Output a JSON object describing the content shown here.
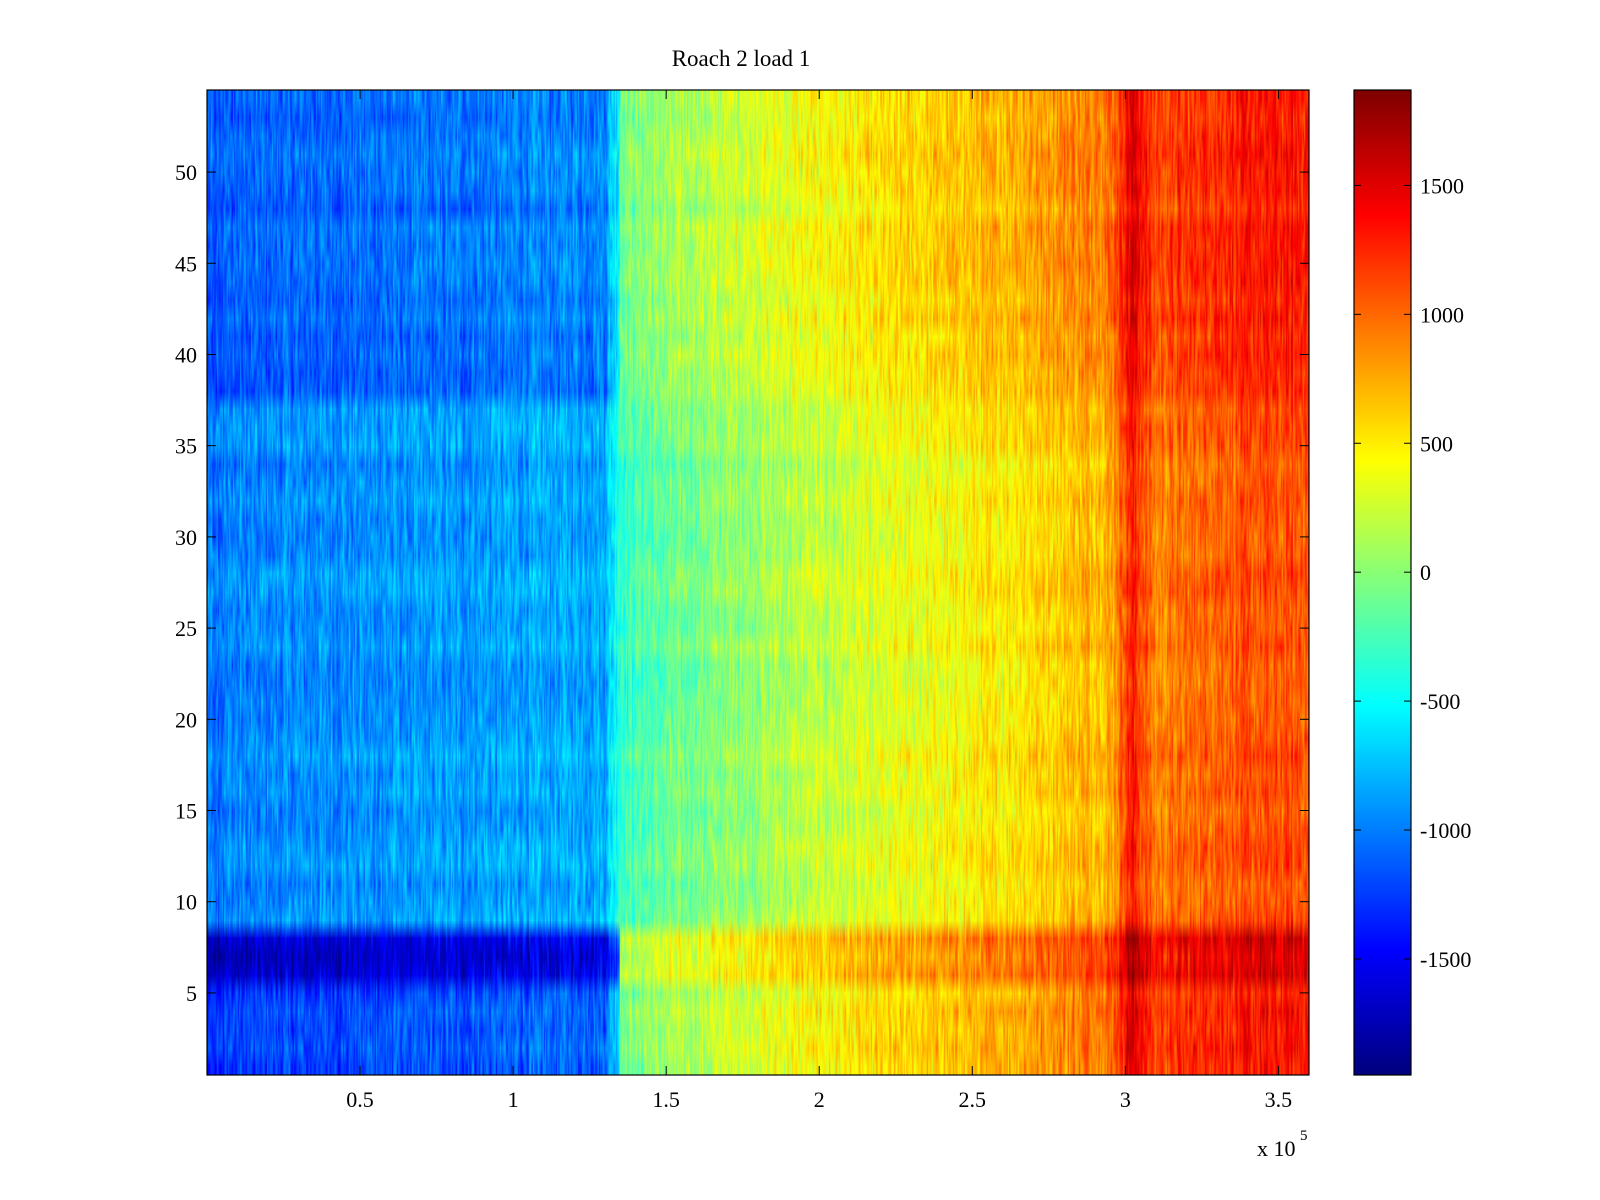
{
  "chart_data": {
    "type": "heatmap",
    "title": "Roach 2 load 1",
    "xlabel": "",
    "ylabel": "",
    "x_exponent_label": "x 10",
    "x_exponent_power": "5",
    "xlim": [
      0,
      3.6
    ],
    "ylim": [
      0.5,
      54.5
    ],
    "x_ticks": [
      {
        "value": 0.5,
        "label": "0.5"
      },
      {
        "value": 1,
        "label": "1"
      },
      {
        "value": 1.5,
        "label": "1.5"
      },
      {
        "value": 2,
        "label": "2"
      },
      {
        "value": 2.5,
        "label": "2.5"
      },
      {
        "value": 3,
        "label": "3"
      },
      {
        "value": 3.5,
        "label": "3.5"
      }
    ],
    "y_ticks": [
      {
        "value": 5,
        "label": "5"
      },
      {
        "value": 10,
        "label": "10"
      },
      {
        "value": 15,
        "label": "15"
      },
      {
        "value": 20,
        "label": "20"
      },
      {
        "value": 25,
        "label": "25"
      },
      {
        "value": 30,
        "label": "30"
      },
      {
        "value": 35,
        "label": "35"
      },
      {
        "value": 40,
        "label": "40"
      },
      {
        "value": 45,
        "label": "45"
      },
      {
        "value": 50,
        "label": "50"
      }
    ],
    "rows": 54,
    "colormap": "jet",
    "colorbar": {
      "clim": [
        -1950,
        1870
      ],
      "ticks": [
        {
          "value": -1500,
          "label": "-1500"
        },
        {
          "value": -1000,
          "label": "-1000"
        },
        {
          "value": -500,
          "label": "-500"
        },
        {
          "value": 0,
          "label": "0"
        },
        {
          "value": 500,
          "label": "500"
        },
        {
          "value": 1000,
          "label": "1000"
        },
        {
          "value": 1500,
          "label": "1500"
        }
      ]
    },
    "column_profile": {
      "x": [
        0.0,
        0.3,
        0.8,
        1.1,
        1.3,
        1.35,
        1.5,
        1.75,
        2.0,
        2.3,
        2.6,
        2.95,
        3.02,
        3.1,
        3.3,
        3.6
      ],
      "baseline": [
        -1000,
        -950,
        -900,
        -850,
        -820,
        -300,
        -150,
        50,
        200,
        350,
        500,
        750,
        1300,
        900,
        1050,
        1100
      ]
    },
    "bands": [
      {
        "name": "rows 6-8",
        "y_from": 5.5,
        "y_to": 8.5,
        "x_split": 1.35,
        "left_offset": -700,
        "right_offset": 450
      },
      {
        "name": "rows 1-5",
        "y_from": 0.5,
        "y_to": 5.5,
        "x_split": 1.35,
        "left_offset": -250,
        "right_offset": 250
      },
      {
        "name": "rows 38-54",
        "y_from": 37.5,
        "y_to": 54.5,
        "x_split": 1.35,
        "left_offset": -150,
        "right_offset": 200
      }
    ]
  }
}
